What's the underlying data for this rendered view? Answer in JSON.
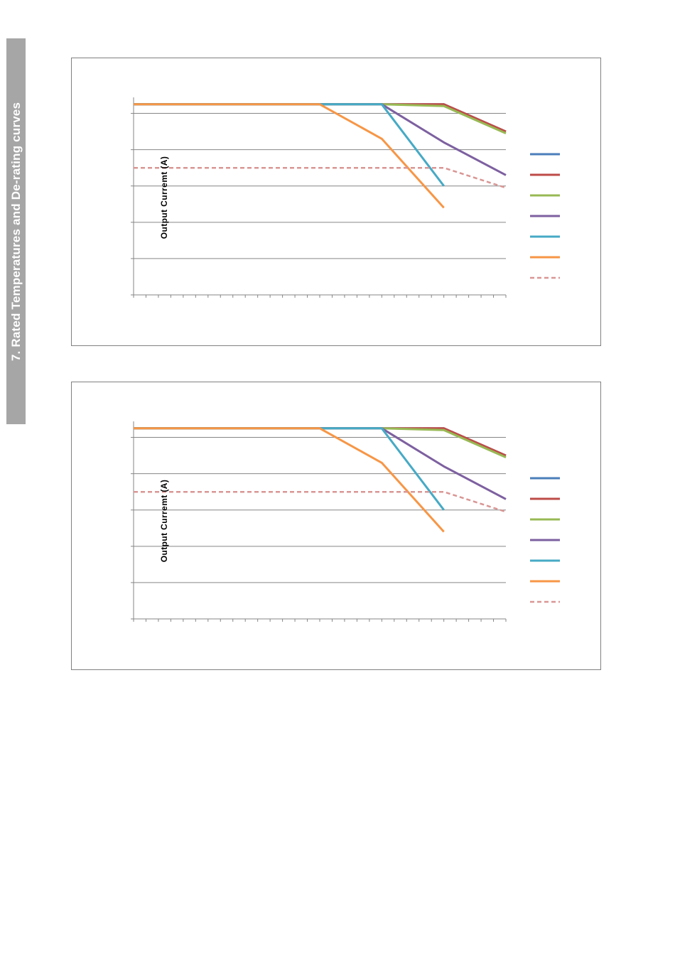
{
  "side_tab": {
    "title": "7. Rated Temperatures and De-rating curves"
  },
  "chart_data": [
    {
      "type": "line",
      "title": "",
      "xlabel": "",
      "ylabel": "Output Curremt (A)",
      "x": [
        0,
        1,
        2,
        3,
        4,
        5,
        6,
        7,
        8,
        9,
        10,
        11,
        12,
        13,
        14,
        15,
        16,
        17,
        18,
        19,
        20,
        21,
        22,
        23,
        24,
        25,
        26,
        27,
        28,
        29,
        30
      ],
      "ylim": [
        0,
        5.5
      ],
      "y_gridlines": [
        1,
        2,
        3,
        4,
        5
      ],
      "grid": true,
      "legend_position": "right",
      "series": [
        {
          "color": "#4a7ebb",
          "dashed": false,
          "x": [
            0,
            20,
            25,
            30
          ],
          "values": [
            5.25,
            5.25,
            5.25,
            4.5
          ]
        },
        {
          "color": "#be4b48",
          "dashed": false,
          "x": [
            0,
            20,
            25,
            30
          ],
          "values": [
            5.25,
            5.25,
            5.25,
            4.5
          ]
        },
        {
          "color": "#98b954",
          "dashed": false,
          "x": [
            0,
            20,
            25,
            30
          ],
          "values": [
            5.25,
            5.25,
            5.2,
            4.45
          ]
        },
        {
          "color": "#7d60a0",
          "dashed": false,
          "x": [
            0,
            20,
            25,
            30
          ],
          "values": [
            5.25,
            5.25,
            4.2,
            3.3
          ]
        },
        {
          "color": "#46aac5",
          "dashed": false,
          "x": [
            0,
            20,
            25
          ],
          "values": [
            5.25,
            5.25,
            3.0
          ]
        },
        {
          "color": "#f79646",
          "dashed": false,
          "x": [
            0,
            15,
            20,
            25
          ],
          "values": [
            5.25,
            5.25,
            4.3,
            2.4
          ]
        },
        {
          "color": "#d99694",
          "dashed": true,
          "x": [
            0,
            20,
            25,
            30
          ],
          "values": [
            3.5,
            3.5,
            3.5,
            2.95
          ]
        }
      ]
    },
    {
      "type": "line",
      "title": "",
      "xlabel": "",
      "ylabel": "Output Curremt (A)",
      "x": [
        0,
        1,
        2,
        3,
        4,
        5,
        6,
        7,
        8,
        9,
        10,
        11,
        12,
        13,
        14,
        15,
        16,
        17,
        18,
        19,
        20,
        21,
        22,
        23,
        24,
        25,
        26,
        27,
        28,
        29,
        30
      ],
      "ylim": [
        0,
        5.5
      ],
      "y_gridlines": [
        1,
        2,
        3,
        4,
        5
      ],
      "grid": true,
      "legend_position": "right",
      "series": [
        {
          "color": "#4a7ebb",
          "dashed": false,
          "x": [
            0,
            20,
            25,
            30
          ],
          "values": [
            5.25,
            5.25,
            5.25,
            4.5
          ]
        },
        {
          "color": "#be4b48",
          "dashed": false,
          "x": [
            0,
            20,
            25,
            30
          ],
          "values": [
            5.25,
            5.25,
            5.25,
            4.5
          ]
        },
        {
          "color": "#98b954",
          "dashed": false,
          "x": [
            0,
            20,
            25,
            30
          ],
          "values": [
            5.25,
            5.25,
            5.2,
            4.45
          ]
        },
        {
          "color": "#7d60a0",
          "dashed": false,
          "x": [
            0,
            20,
            25,
            30
          ],
          "values": [
            5.25,
            5.25,
            4.2,
            3.3
          ]
        },
        {
          "color": "#46aac5",
          "dashed": false,
          "x": [
            0,
            20,
            25
          ],
          "values": [
            5.25,
            5.25,
            3.0
          ]
        },
        {
          "color": "#f79646",
          "dashed": false,
          "x": [
            0,
            15,
            20,
            25
          ],
          "values": [
            5.25,
            5.25,
            4.3,
            2.4
          ]
        },
        {
          "color": "#d99694",
          "dashed": true,
          "x": [
            0,
            20,
            25,
            30
          ],
          "values": [
            3.5,
            3.5,
            3.5,
            2.95
          ]
        }
      ]
    }
  ]
}
